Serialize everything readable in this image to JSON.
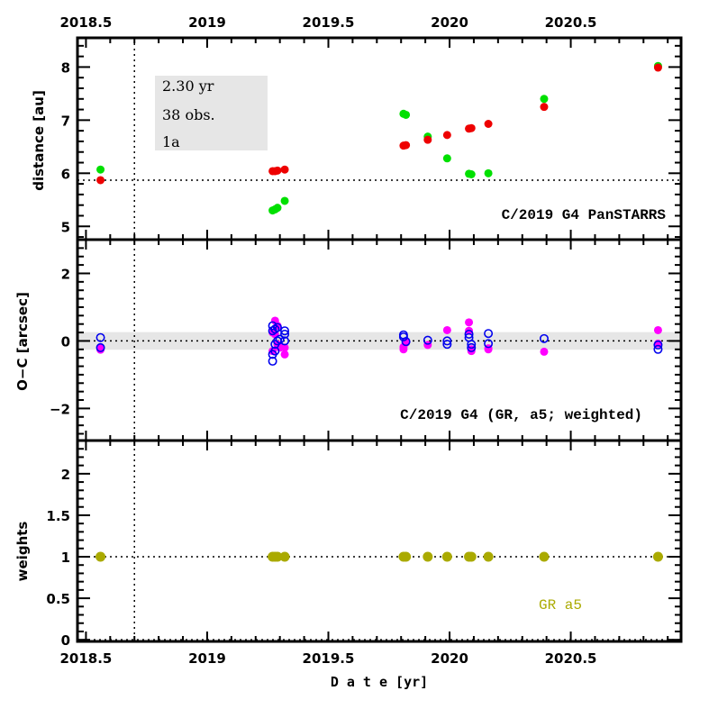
{
  "chart_data": [
    {
      "type": "scatter",
      "panel": "distance",
      "ylabel": "distance [au]",
      "ylim": [
        4.75,
        8.55
      ],
      "yticks": [
        5,
        6,
        7,
        8
      ],
      "ytick_labels": [
        "5",
        "6",
        "7",
        "8"
      ],
      "xlim": [
        2018.465,
        2020.955
      ],
      "top_xticks": [
        2018.5,
        2019,
        2019.5,
        2020,
        2020.5
      ],
      "top_xtick_labels": [
        "2018.5",
        "2019",
        "2019.5",
        "2020",
        "2020.5"
      ],
      "hline": 5.87,
      "vline": 2018.7,
      "info_box": [
        "2.30 yr",
        "38 obs.",
        "1a"
      ],
      "annotation": "C/2019 G4 PanSTARRS",
      "series": [
        {
          "name": "green",
          "color": "#00e000",
          "x": [
            2018.56,
            2019.27,
            2019.28,
            2019.29,
            2019.32,
            2019.81,
            2019.82,
            2019.91,
            2019.99,
            2020.08,
            2020.09,
            2020.16,
            2020.39,
            2020.86
          ],
          "y": [
            6.07,
            5.3,
            5.32,
            5.35,
            5.48,
            7.12,
            7.1,
            6.69,
            6.28,
            5.99,
            5.98,
            6.0,
            7.4,
            8.02
          ]
        },
        {
          "name": "red",
          "color": "#ee0000",
          "x": [
            2018.56,
            2019.27,
            2019.28,
            2019.29,
            2019.32,
            2019.81,
            2019.82,
            2019.91,
            2019.99,
            2020.08,
            2020.09,
            2020.16,
            2020.39,
            2020.86
          ],
          "y": [
            5.87,
            6.04,
            6.04,
            6.05,
            6.07,
            6.52,
            6.53,
            6.63,
            6.72,
            6.84,
            6.85,
            6.93,
            7.25,
            7.99
          ]
        }
      ]
    },
    {
      "type": "scatter",
      "panel": "residuals",
      "ylabel": "O−C [arcsec]",
      "ylim": [
        -2.95,
        3.0
      ],
      "yticks": [
        -2,
        0,
        2
      ],
      "ytick_labels": [
        "−2",
        "0",
        "2"
      ],
      "xlim": [
        2018.465,
        2020.955
      ],
      "hline": 0,
      "vline": 2018.7,
      "band": [
        -0.26,
        0.26
      ],
      "annotation": "C/2019 G4 (GR, a5; weighted)",
      "series": [
        {
          "name": "filled-magenta",
          "color": "#ff00ff",
          "marker": "filled",
          "x": [
            2018.56,
            2018.56,
            2019.27,
            2019.27,
            2019.28,
            2019.28,
            2019.29,
            2019.29,
            2019.3,
            2019.32,
            2019.32,
            2019.81,
            2019.81,
            2019.82,
            2019.91,
            2019.99,
            2020.08,
            2020.08,
            2020.09,
            2020.09,
            2020.16,
            2020.16,
            2020.39,
            2020.86,
            2020.86
          ],
          "y": [
            -0.22,
            -0.26,
            0.25,
            -0.3,
            0.6,
            0.2,
            -0.1,
            0.45,
            -0.2,
            -0.2,
            -0.4,
            -0.18,
            -0.25,
            -0.05,
            -0.12,
            0.32,
            0.55,
            0.3,
            -0.25,
            -0.3,
            -0.22,
            -0.25,
            -0.32,
            0.32,
            -0.08
          ]
        },
        {
          "name": "open-blue",
          "color": "#0000ee",
          "marker": "open",
          "x": [
            2018.56,
            2018.56,
            2019.27,
            2019.27,
            2019.27,
            2019.27,
            2019.28,
            2019.28,
            2019.28,
            2019.29,
            2019.29,
            2019.3,
            2019.32,
            2019.32,
            2019.32,
            2019.81,
            2019.81,
            2019.82,
            2019.91,
            2019.99,
            2019.99,
            2020.08,
            2020.08,
            2020.09,
            2020.09,
            2020.16,
            2020.16,
            2020.39,
            2020.86,
            2020.86
          ],
          "y": [
            0.1,
            -0.2,
            0.45,
            0.3,
            -0.4,
            -0.6,
            0.35,
            -0.1,
            -0.3,
            0.4,
            0.0,
            0.05,
            0.3,
            0.2,
            0.0,
            0.18,
            0.12,
            -0.02,
            0.02,
            0.0,
            -0.1,
            0.2,
            0.1,
            -0.1,
            -0.2,
            0.22,
            -0.08,
            0.07,
            -0.12,
            -0.25
          ]
        }
      ]
    },
    {
      "type": "scatter",
      "panel": "weights",
      "ylabel": "weights",
      "xlabel": "D a t e [yr]",
      "ylim": [
        -0.02,
        2.4
      ],
      "yticks": [
        0,
        0.5,
        1,
        1.5,
        2
      ],
      "ytick_labels": [
        "0",
        "0.5",
        "1",
        "1.5",
        "2"
      ],
      "xlim": [
        2018.465,
        2020.955
      ],
      "bottom_xticks": [
        2018.5,
        2019,
        2019.5,
        2020,
        2020.5
      ],
      "bottom_xtick_labels": [
        "2018.5",
        "2019",
        "2019.5",
        "2020",
        "2020.5"
      ],
      "hlines": [
        1,
        0
      ],
      "vline": 2018.7,
      "annotation": "GR a5",
      "annotation_color": "#aaaa00",
      "series": [
        {
          "name": "weights",
          "color": "#aaaa00",
          "x": [
            2018.56,
            2019.27,
            2019.28,
            2019.29,
            2019.32,
            2019.81,
            2019.82,
            2019.91,
            2019.99,
            2020.08,
            2020.09,
            2020.16,
            2020.39,
            2020.86
          ],
          "y": [
            1,
            1,
            1,
            1,
            1,
            1,
            1,
            1,
            1,
            1,
            1,
            1,
            1,
            1
          ]
        }
      ]
    }
  ]
}
